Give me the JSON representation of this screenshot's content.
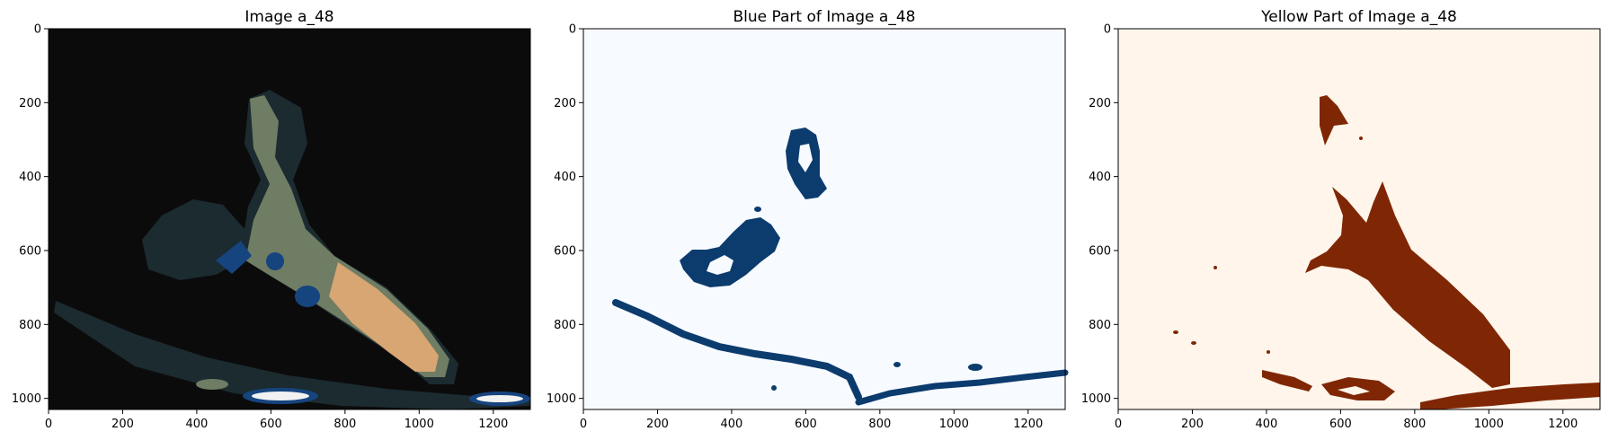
{
  "chart_data": [
    {
      "type": "image",
      "title": "Image a_48",
      "xlim": [
        0,
        1300
      ],
      "ylim": [
        1030,
        0
      ],
      "xticks": [
        0,
        200,
        400,
        600,
        800,
        1000,
        1200
      ],
      "yticks": [
        0,
        200,
        400,
        600,
        800,
        1000
      ],
      "colors": {
        "background": "#0c0b0c",
        "dark_teal": "#1b2b30",
        "olive_green": "#6e7d63",
        "tan": "#d8a673",
        "blue": "#16447e",
        "white": "#f2f2f2"
      }
    },
    {
      "type": "mask",
      "title": "Blue Part of Image a_48",
      "xlim": [
        0,
        1300
      ],
      "ylim": [
        1030,
        0
      ],
      "xticks": [
        0,
        200,
        400,
        600,
        800,
        1000,
        1200
      ],
      "yticks": [
        0,
        200,
        400,
        600,
        800,
        1000
      ],
      "colormap": "Blues",
      "colors": {
        "background": "#f7fbff",
        "mask": "#0c3b6e"
      }
    },
    {
      "type": "mask",
      "title": "Yellow Part of Image a_48",
      "xlim": [
        0,
        1300
      ],
      "ylim": [
        1030,
        0
      ],
      "xticks": [
        0,
        200,
        400,
        600,
        800,
        1000,
        1200
      ],
      "yticks": [
        0,
        200,
        400,
        600,
        800,
        1000
      ],
      "colormap": "Oranges",
      "colors": {
        "background": "#fff5eb",
        "mask": "#7f2704"
      }
    }
  ]
}
